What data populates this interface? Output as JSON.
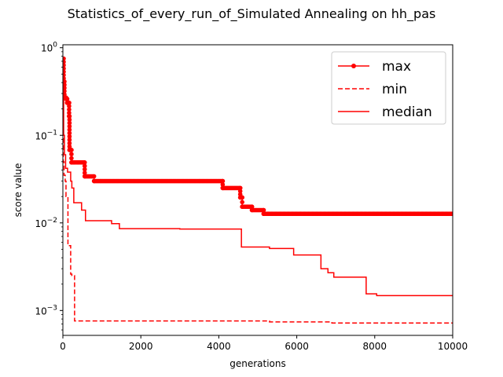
{
  "chart_data": {
    "type": "line",
    "title": "Statistics_of_every_run_of_Simulated Annealing on hh_pas",
    "xlabel": "generations",
    "ylabel": "score value",
    "xlim": [
      0,
      10000
    ],
    "ylim": [
      0.00052,
      1.08
    ],
    "yscale": "log",
    "x_ticks": [
      {
        "value": 0,
        "label": "0"
      },
      {
        "value": 2000,
        "label": "2000"
      },
      {
        "value": 4000,
        "label": "4000"
      },
      {
        "value": 6000,
        "label": "6000"
      },
      {
        "value": 8000,
        "label": "8000"
      },
      {
        "value": 10000,
        "label": "10000"
      }
    ],
    "y_ticks": [
      {
        "value": 0.001,
        "base": "10",
        "exp": "−3"
      },
      {
        "value": 0.01,
        "base": "10",
        "exp": "−2"
      },
      {
        "value": 0.1,
        "base": "10",
        "exp": "−1"
      },
      {
        "value": 1,
        "base": "10",
        "exp": "0"
      }
    ],
    "grid": false,
    "legend_position": "top-right",
    "color": "#ff0000",
    "series": [
      {
        "name": "max",
        "style": "solid-dots",
        "points": [
          [
            0,
            0.75
          ],
          [
            20,
            0.75
          ],
          [
            20,
            0.41
          ],
          [
            40,
            0.41
          ],
          [
            40,
            0.27
          ],
          [
            80,
            0.27
          ],
          [
            80,
            0.26
          ],
          [
            110,
            0.26
          ],
          [
            110,
            0.235
          ],
          [
            160,
            0.235
          ],
          [
            160,
            0.165
          ],
          [
            170,
            0.165
          ],
          [
            170,
            0.068
          ],
          [
            220,
            0.068
          ],
          [
            220,
            0.049
          ],
          [
            560,
            0.049
          ],
          [
            560,
            0.034
          ],
          [
            800,
            0.034
          ],
          [
            800,
            0.03
          ],
          [
            4100,
            0.03
          ],
          [
            4100,
            0.025
          ],
          [
            4550,
            0.025
          ],
          [
            4550,
            0.0195
          ],
          [
            4600,
            0.0195
          ],
          [
            4600,
            0.0153
          ],
          [
            4850,
            0.0153
          ],
          [
            4850,
            0.014
          ],
          [
            5150,
            0.014
          ],
          [
            5150,
            0.0127
          ],
          [
            10000,
            0.0127
          ]
        ]
      },
      {
        "name": "min",
        "style": "dashed",
        "points": [
          [
            0,
            0.28
          ],
          [
            10,
            0.28
          ],
          [
            10,
            0.05
          ],
          [
            30,
            0.05
          ],
          [
            30,
            0.035
          ],
          [
            60,
            0.035
          ],
          [
            60,
            0.03
          ],
          [
            80,
            0.03
          ],
          [
            80,
            0.02
          ],
          [
            130,
            0.02
          ],
          [
            130,
            0.0055
          ],
          [
            200,
            0.0055
          ],
          [
            200,
            0.0026
          ],
          [
            230,
            0.0026
          ],
          [
            230,
            0.0025
          ],
          [
            300,
            0.0025
          ],
          [
            300,
            0.00076
          ],
          [
            5300,
            0.00076
          ],
          [
            5300,
            0.00074
          ],
          [
            6900,
            0.00074
          ],
          [
            6900,
            0.00072
          ],
          [
            10000,
            0.00072
          ]
        ]
      },
      {
        "name": "median",
        "style": "solid",
        "points": [
          [
            0,
            0.3
          ],
          [
            20,
            0.3
          ],
          [
            20,
            0.1
          ],
          [
            40,
            0.1
          ],
          [
            40,
            0.06
          ],
          [
            70,
            0.06
          ],
          [
            70,
            0.042
          ],
          [
            120,
            0.042
          ],
          [
            120,
            0.038
          ],
          [
            200,
            0.038
          ],
          [
            200,
            0.03
          ],
          [
            230,
            0.03
          ],
          [
            230,
            0.025
          ],
          [
            280,
            0.025
          ],
          [
            280,
            0.017
          ],
          [
            480,
            0.017
          ],
          [
            480,
            0.014
          ],
          [
            580,
            0.014
          ],
          [
            580,
            0.0106
          ],
          [
            1250,
            0.0106
          ],
          [
            1250,
            0.0098
          ],
          [
            1450,
            0.0098
          ],
          [
            1450,
            0.0086
          ],
          [
            3000,
            0.0086
          ],
          [
            3000,
            0.0085
          ],
          [
            4580,
            0.0085
          ],
          [
            4580,
            0.0053
          ],
          [
            5300,
            0.0053
          ],
          [
            5300,
            0.0051
          ],
          [
            5920,
            0.0051
          ],
          [
            5920,
            0.0043
          ],
          [
            6620,
            0.0043
          ],
          [
            6620,
            0.003
          ],
          [
            6800,
            0.003
          ],
          [
            6800,
            0.0027
          ],
          [
            6950,
            0.0027
          ],
          [
            6950,
            0.0024
          ],
          [
            7780,
            0.0024
          ],
          [
            7780,
            0.00155
          ],
          [
            8050,
            0.00155
          ],
          [
            8050,
            0.00148
          ],
          [
            10000,
            0.00148
          ]
        ]
      }
    ]
  }
}
